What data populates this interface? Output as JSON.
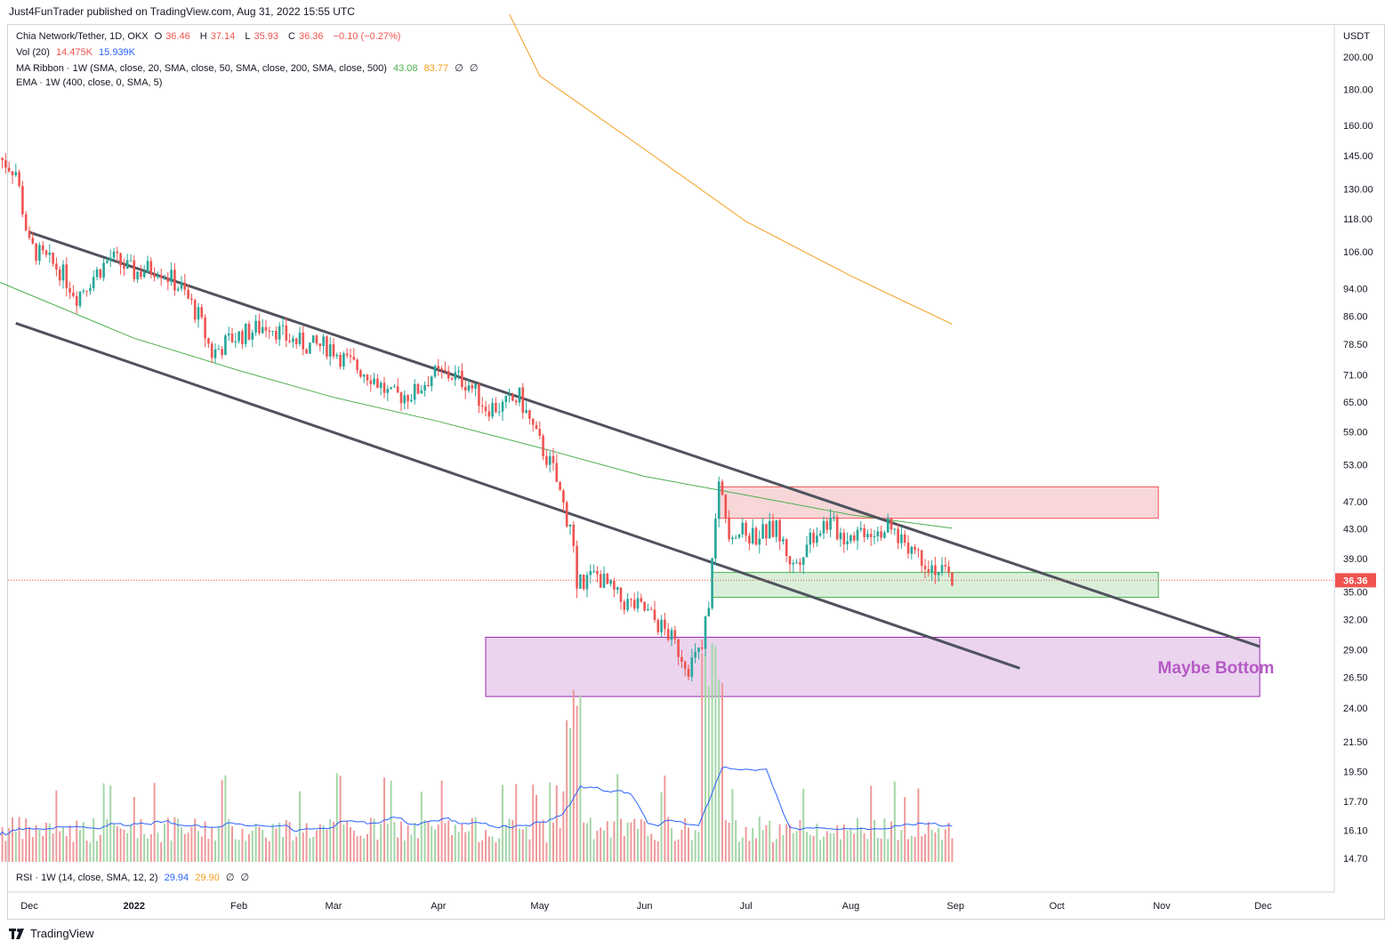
{
  "publisher": "Just4FunTrader published on TradingView.com, Aug 31, 2022 15:55 UTC",
  "footer_brand": "TradingView",
  "currency": "USDT",
  "last_price_label": "36.36",
  "legend": {
    "symbol": "Chia Network/Tether, 1D, OKX",
    "o_label": "O",
    "o": "36.46",
    "h_label": "H",
    "h": "37.14",
    "l_label": "L",
    "l": "35.93",
    "c_label": "C",
    "c": "36.36",
    "change": "−0.10 (−0.27%)",
    "vol_label": "Vol (20)",
    "vol": "14.475K",
    "vol_ma": "15.939K",
    "ribbon_label": "MA Ribbon · 1W (SMA, close, 20, SMA, close, 50, SMA, close, 200, SMA, close, 500)",
    "ribbon_v1": "43.08",
    "ribbon_v2": "83.77",
    "ribbon_v3": "∅",
    "ribbon_v4": "∅",
    "ema_label": "EMA · 1W (400, close, 0, SMA, 5)",
    "rsi_label": "RSI · 1W (14, close, SMA, 12, 2)",
    "rsi_v1": "29.94",
    "rsi_v2": "29.90",
    "rsi_v3": "∅",
    "rsi_v4": "∅"
  },
  "annotation": "Maybe Bottom",
  "colors": {
    "up": "#26a69a",
    "down": "#ef5350",
    "ribbon_green": "#4caf50",
    "ribbon_orange": "#f59d1d",
    "vol_ma": "#2962ff",
    "channel": "#50535e",
    "resistance_zone": "#f8d7d9",
    "support_zone": "#d9efda",
    "bottom_zone": "#ead4ee",
    "bottom_text": "#b55ac6"
  },
  "chart_data": {
    "type": "candlestick",
    "yscale": "log",
    "y_ticks": [
      200.0,
      180.0,
      160.0,
      145.0,
      130.0,
      118.0,
      106.0,
      94.0,
      86.0,
      78.5,
      71.0,
      65.0,
      59.0,
      53.0,
      47.0,
      43.0,
      39.0,
      35.0,
      32.0,
      29.0,
      26.5,
      24.0,
      21.5,
      19.5,
      17.7,
      16.1,
      14.7
    ],
    "x_ticks": [
      "Dec",
      "2022",
      "Feb",
      "Mar",
      "Apr",
      "May",
      "Jun",
      "Jul",
      "Aug",
      "Sep",
      "Oct",
      "Nov",
      "Dec"
    ],
    "price_path": [
      [
        "2021-11-22",
        144
      ],
      [
        "2021-11-27",
        138
      ],
      [
        "2021-12-01",
        108
      ],
      [
        "2021-12-05",
        104
      ],
      [
        "2021-12-10",
        100
      ],
      [
        "2021-12-15",
        92
      ],
      [
        "2021-12-20",
        98
      ],
      [
        "2021-12-25",
        104
      ],
      [
        "2022-01-01",
        99
      ],
      [
        "2022-01-08",
        101
      ],
      [
        "2022-01-15",
        94
      ],
      [
        "2022-01-20",
        86
      ],
      [
        "2022-01-24",
        76
      ],
      [
        "2022-01-30",
        80
      ],
      [
        "2022-02-05",
        82
      ],
      [
        "2022-02-10",
        84
      ],
      [
        "2022-02-15",
        80
      ],
      [
        "2022-02-22",
        78
      ],
      [
        "2022-02-28",
        78
      ],
      [
        "2022-03-05",
        74
      ],
      [
        "2022-03-12",
        71
      ],
      [
        "2022-03-18",
        66
      ],
      [
        "2022-03-25",
        67
      ],
      [
        "2022-03-30",
        71
      ],
      [
        "2022-04-05",
        71
      ],
      [
        "2022-04-10",
        69
      ],
      [
        "2022-04-15",
        64
      ],
      [
        "2022-04-20",
        64
      ],
      [
        "2022-04-25",
        66
      ],
      [
        "2022-04-30",
        58
      ],
      [
        "2022-05-05",
        52
      ],
      [
        "2022-05-10",
        43
      ],
      [
        "2022-05-12",
        36
      ],
      [
        "2022-05-18",
        37
      ],
      [
        "2022-05-25",
        34
      ],
      [
        "2022-06-01",
        33
      ],
      [
        "2022-06-08",
        30.5
      ],
      [
        "2022-06-14",
        27.5
      ],
      [
        "2022-06-18",
        29
      ],
      [
        "2022-06-20",
        34
      ],
      [
        "2022-06-23",
        50
      ],
      [
        "2022-06-26",
        43
      ],
      [
        "2022-07-03",
        42
      ],
      [
        "2022-07-10",
        43
      ],
      [
        "2022-07-15",
        38
      ],
      [
        "2022-07-20",
        42
      ],
      [
        "2022-07-25",
        44
      ],
      [
        "2022-07-30",
        42
      ],
      [
        "2022-08-05",
        43
      ],
      [
        "2022-08-12",
        43
      ],
      [
        "2022-08-18",
        41
      ],
      [
        "2022-08-24",
        38.5
      ],
      [
        "2022-08-31",
        36.36
      ]
    ],
    "ma_ribbon": {
      "green": [
        [
          "2021-11-20",
          97
        ],
        [
          "2022-01-01",
          80
        ],
        [
          "2022-02-01",
          72
        ],
        [
          "2022-03-01",
          66
        ],
        [
          "2022-04-01",
          61
        ],
        [
          "2022-05-01",
          56
        ],
        [
          "2022-06-01",
          51
        ],
        [
          "2022-07-01",
          48
        ],
        [
          "2022-08-01",
          45
        ],
        [
          "2022-08-31",
          43.08
        ]
      ],
      "orange": [
        [
          "2022-04-22",
          230
        ],
        [
          "2022-05-01",
          188
        ],
        [
          "2022-06-01",
          148
        ],
        [
          "2022-07-01",
          117
        ],
        [
          "2022-08-01",
          98
        ],
        [
          "2022-08-31",
          83.77
        ]
      ]
    },
    "channel": {
      "upper": [
        [
          "2021-12-01",
          113
        ],
        [
          "2022-11-30",
          29.3
        ]
      ],
      "lower": [
        [
          "2021-11-27",
          84
        ],
        [
          "2022-09-20",
          27.3
        ]
      ]
    },
    "zones": [
      {
        "name": "resistance",
        "from": "2022-06-23",
        "to": "2022-10-31",
        "low": 44.5,
        "high": 49.3
      },
      {
        "name": "support",
        "from": "2022-06-21",
        "to": "2022-10-31",
        "low": 34.4,
        "high": 37.3
      },
      {
        "name": "bottom",
        "from": "2022-04-15",
        "to": "2022-11-30",
        "low": 24.9,
        "high": 30.2
      }
    ],
    "last_price": 36.36,
    "volume_unit": "K"
  }
}
